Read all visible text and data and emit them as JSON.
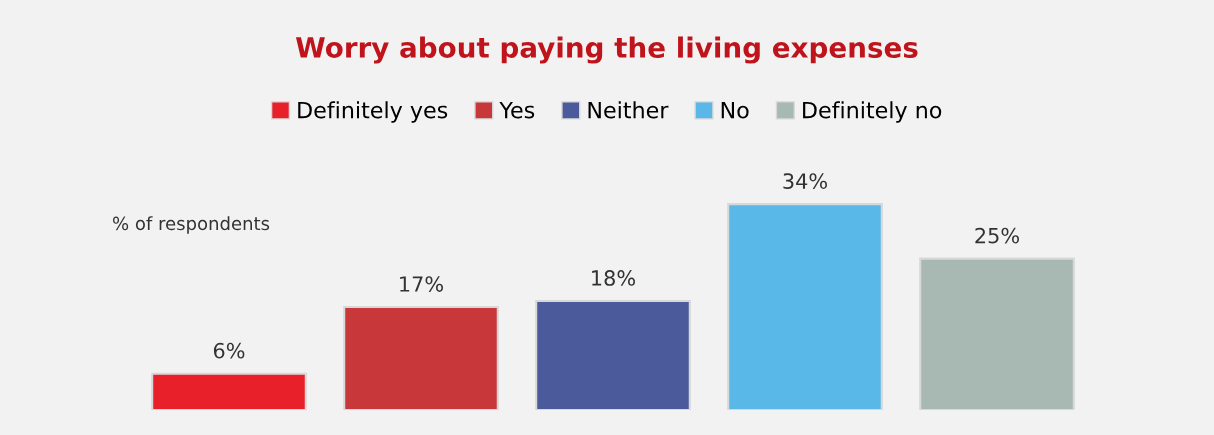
{
  "chart_data": {
    "type": "bar",
    "title": "Worry about paying the living expenses",
    "annotations": [
      "% of respondents"
    ],
    "categories": [
      null
    ],
    "series": [
      {
        "name": "Definitely yes",
        "color": "#e8202a",
        "values": [
          6
        ],
        "value_labels": [
          "6%"
        ]
      },
      {
        "name": "Yes",
        "color": "#c8383a",
        "values": [
          17
        ],
        "value_labels": [
          "17%"
        ]
      },
      {
        "name": "Neither",
        "color": "#4a5a9a",
        "values": [
          18
        ],
        "value_labels": [
          "18%"
        ]
      },
      {
        "name": "No",
        "color": "#5ab8e8",
        "values": [
          34
        ],
        "value_labels": [
          "34%"
        ]
      },
      {
        "name": "Definitely no",
        "color": "#a8b8b2",
        "values": [
          25
        ],
        "value_labels": [
          "25%"
        ]
      }
    ],
    "legend": "top",
    "tick_labels": false,
    "grid": false
  }
}
